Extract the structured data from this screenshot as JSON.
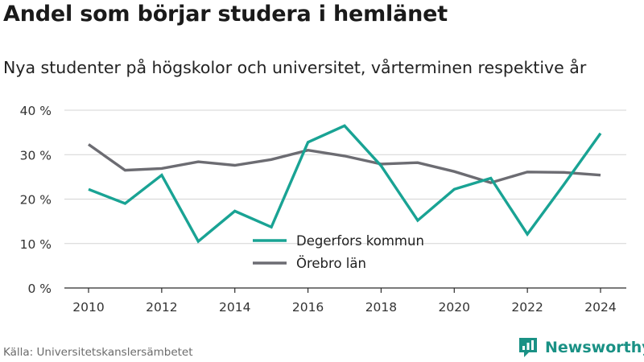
{
  "title": "Andel som börjar studera i hemlänet",
  "subtitle": "Nya studenter på högskolor och universitet, vårterminen respektive år",
  "source": "Källa: Universitetskanslersämbetet",
  "brand": {
    "name": "Newsworthy",
    "icon": "newsworthy-logo-icon",
    "color": "#1a9185"
  },
  "chart_data": {
    "type": "line",
    "title": "Andel som börjar studera i hemlänet",
    "subtitle": "Nya studenter på högskolor och universitet, vårterminen respektive år",
    "xlabel": "",
    "ylabel": "",
    "x": [
      2010,
      2011,
      2012,
      2013,
      2014,
      2015,
      2016,
      2017,
      2018,
      2019,
      2020,
      2021,
      2022,
      2023,
      2024
    ],
    "xticks": [
      2010,
      2012,
      2014,
      2016,
      2018,
      2020,
      2022,
      2024
    ],
    "xlim": [
      2010,
      2024
    ],
    "ylim": [
      0,
      40
    ],
    "yticks": [
      0,
      10,
      20,
      30,
      40
    ],
    "ytick_labels": [
      "0 %",
      "10 %",
      "20 %",
      "30 %",
      "40 %"
    ],
    "grid": true,
    "legend": "bottom-center",
    "series": [
      {
        "name": "Degerfors kommun",
        "color": "#19a394",
        "values": [
          22.2,
          19.0,
          25.4,
          10.5,
          17.3,
          13.7,
          32.8,
          36.5,
          27.5,
          15.2,
          22.2,
          24.7,
          12.1,
          23.3,
          34.8
        ]
      },
      {
        "name": "Örebro län",
        "color": "#6c6c72",
        "values": [
          32.3,
          26.5,
          26.9,
          28.4,
          27.6,
          28.9,
          31.0,
          29.7,
          27.9,
          28.2,
          26.2,
          23.7,
          26.1,
          26.0,
          25.4
        ]
      }
    ]
  }
}
